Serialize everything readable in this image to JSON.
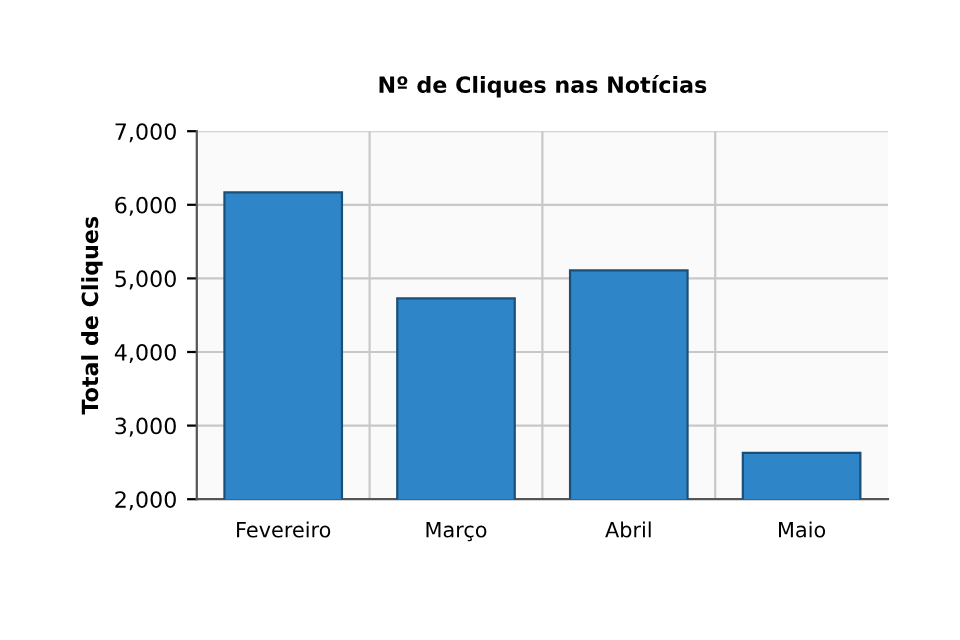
{
  "chart_data": {
    "type": "bar",
    "title": "Nº de Cliques nas Notícias",
    "ylabel": "Total de Cliques",
    "categories": [
      "Fevereiro",
      "Março",
      "Abril",
      "Maio"
    ],
    "values": [
      6170,
      4730,
      5110,
      2630
    ],
    "color": "#2e86c8",
    "ylim": [
      2000,
      7000
    ],
    "yticks": [
      {
        "value": 2000,
        "label": "2,000"
      },
      {
        "value": 3000,
        "label": "3,000"
      },
      {
        "value": 4000,
        "label": "4,000"
      },
      {
        "value": 5000,
        "label": "5,000"
      },
      {
        "value": 6000,
        "label": "6,000"
      },
      {
        "value": 7000,
        "label": "7,000"
      }
    ],
    "grid": true
  }
}
